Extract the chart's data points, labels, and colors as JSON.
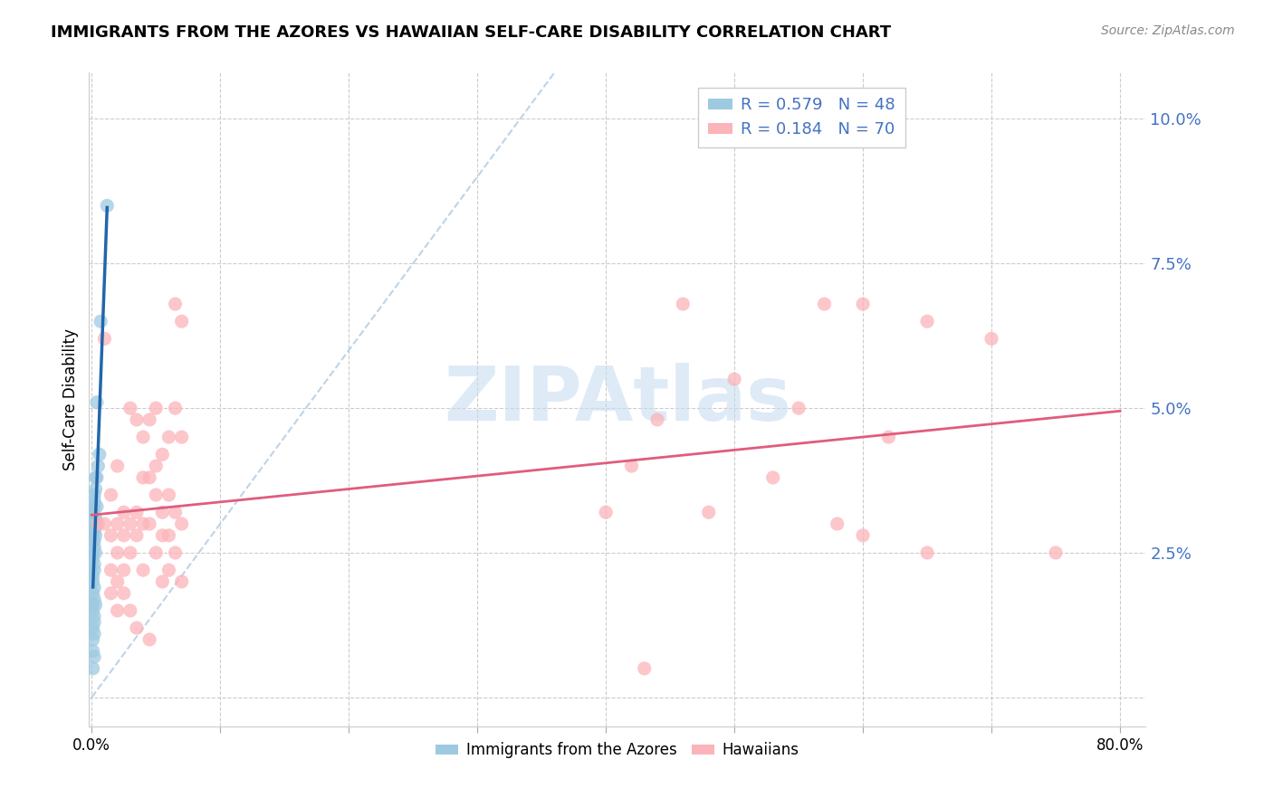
{
  "title": "IMMIGRANTS FROM THE AZORES VS HAWAIIAN SELF-CARE DISABILITY CORRELATION CHART",
  "source": "Source: ZipAtlas.com",
  "ylabel": "Self-Care Disability",
  "ylim": [
    -0.005,
    0.108
  ],
  "xlim": [
    -0.002,
    0.82
  ],
  "yticks": [
    0.0,
    0.025,
    0.05,
    0.075,
    0.1
  ],
  "ytick_labels": [
    "",
    "2.5%",
    "5.0%",
    "7.5%",
    "10.0%"
  ],
  "xticks": [
    0.0,
    0.1,
    0.2,
    0.3,
    0.4,
    0.5,
    0.6,
    0.7,
    0.8
  ],
  "xtick_labels": [
    "0.0%",
    "",
    "",
    "",
    "",
    "",
    "",
    "",
    "80.0%"
  ],
  "blue_R": 0.579,
  "blue_N": 48,
  "pink_R": 0.184,
  "pink_N": 70,
  "blue_color": "#9ecae1",
  "pink_color": "#fbb4b9",
  "blue_line_color": "#2166ac",
  "pink_line_color": "#e05c7e",
  "blue_label": "Immigrants from the Azores",
  "pink_label": "Hawaiians",
  "watermark_text": "ZIPAtlas",
  "watermark_color": "#c8ddf0",
  "title_fontsize": 13,
  "source_fontsize": 10,
  "bg_color": "#ffffff",
  "grid_color": "#cccccc",
  "tick_label_color": "#4472c4",
  "blue_points_x": [
    0.001,
    0.002,
    0.001,
    0.003,
    0.002,
    0.001,
    0.002,
    0.003,
    0.001,
    0.002,
    0.001,
    0.002,
    0.003,
    0.001,
    0.002,
    0.001,
    0.002,
    0.003,
    0.001,
    0.002,
    0.001,
    0.002,
    0.001,
    0.002,
    0.003,
    0.001,
    0.002,
    0.004,
    0.003,
    0.002,
    0.001,
    0.002,
    0.001,
    0.002,
    0.001,
    0.002,
    0.001,
    0.002,
    0.003,
    0.005,
    0.004,
    0.006,
    0.001,
    0.002,
    0.012,
    0.004,
    0.007,
    0.001
  ],
  "blue_points_y": [
    0.03,
    0.035,
    0.032,
    0.038,
    0.033,
    0.028,
    0.03,
    0.031,
    0.027,
    0.029,
    0.025,
    0.026,
    0.028,
    0.024,
    0.022,
    0.02,
    0.023,
    0.025,
    0.021,
    0.027,
    0.018,
    0.019,
    0.016,
    0.017,
    0.03,
    0.032,
    0.034,
    0.033,
    0.036,
    0.031,
    0.028,
    0.029,
    0.015,
    0.014,
    0.012,
    0.013,
    0.01,
    0.011,
    0.016,
    0.04,
    0.038,
    0.042,
    0.008,
    0.007,
    0.085,
    0.051,
    0.065,
    0.005
  ],
  "pink_points_x": [
    0.005,
    0.01,
    0.01,
    0.015,
    0.015,
    0.015,
    0.015,
    0.02,
    0.02,
    0.02,
    0.02,
    0.02,
    0.025,
    0.025,
    0.025,
    0.025,
    0.03,
    0.03,
    0.03,
    0.03,
    0.035,
    0.035,
    0.035,
    0.035,
    0.04,
    0.04,
    0.04,
    0.04,
    0.045,
    0.045,
    0.045,
    0.045,
    0.05,
    0.05,
    0.05,
    0.05,
    0.055,
    0.055,
    0.055,
    0.055,
    0.06,
    0.06,
    0.06,
    0.06,
    0.065,
    0.065,
    0.065,
    0.065,
    0.07,
    0.07,
    0.07,
    0.07,
    0.6,
    0.65,
    0.7,
    0.65,
    0.75,
    0.6,
    0.62,
    0.58,
    0.55,
    0.57,
    0.53,
    0.5,
    0.48,
    0.46,
    0.44,
    0.43,
    0.4,
    0.42
  ],
  "pink_points_y": [
    0.03,
    0.03,
    0.062,
    0.028,
    0.035,
    0.022,
    0.018,
    0.03,
    0.04,
    0.025,
    0.02,
    0.015,
    0.032,
    0.028,
    0.022,
    0.018,
    0.05,
    0.03,
    0.025,
    0.015,
    0.048,
    0.032,
    0.028,
    0.012,
    0.045,
    0.038,
    0.03,
    0.022,
    0.048,
    0.038,
    0.03,
    0.01,
    0.05,
    0.04,
    0.035,
    0.025,
    0.042,
    0.032,
    0.028,
    0.02,
    0.045,
    0.035,
    0.028,
    0.022,
    0.068,
    0.05,
    0.032,
    0.025,
    0.065,
    0.045,
    0.03,
    0.02,
    0.068,
    0.065,
    0.062,
    0.025,
    0.025,
    0.028,
    0.045,
    0.03,
    0.05,
    0.068,
    0.038,
    0.055,
    0.032,
    0.068,
    0.048,
    0.005,
    0.032,
    0.04
  ]
}
